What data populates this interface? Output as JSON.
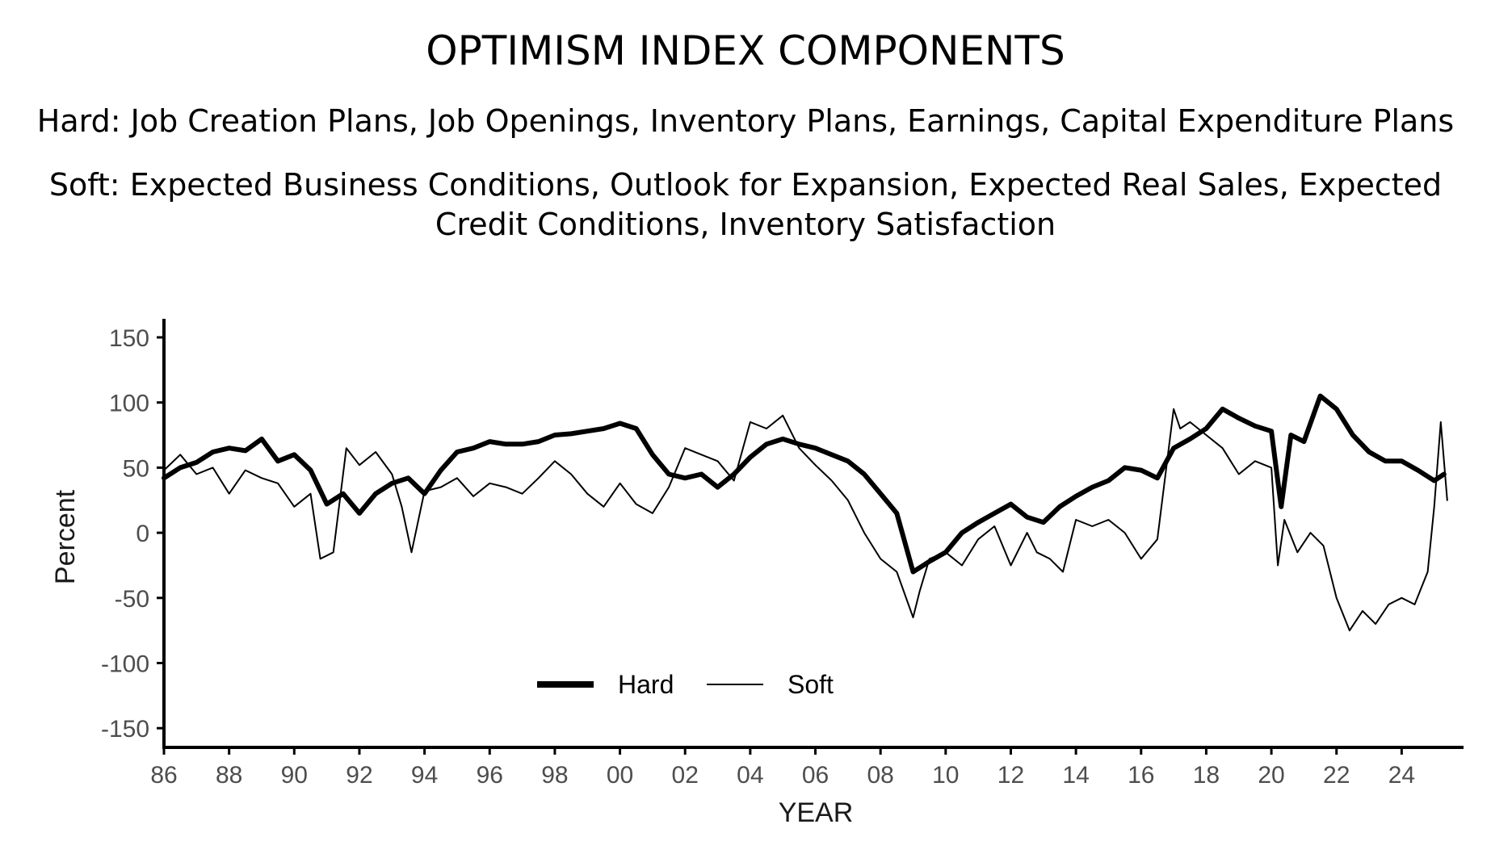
{
  "header": {
    "title": "OPTIMISM INDEX COMPONENTS",
    "hard_desc": "Hard: Job Creation Plans, Job Openings, Inventory Plans, Earnings, Capital Expenditure Plans",
    "soft_desc": "Soft: Expected Business Conditions, Outlook for Expansion, Expected Real Sales, Expected Credit Conditions, Inventory Satisfaction"
  },
  "chart_data": {
    "type": "line",
    "xlabel": "YEAR",
    "ylabel": "Percent",
    "xlim": [
      1986,
      2025.9
    ],
    "ylim": [
      -150,
      150
    ],
    "x_ticks": [
      1986,
      1988,
      1990,
      1992,
      1994,
      1996,
      1998,
      2000,
      2002,
      2004,
      2006,
      2008,
      2010,
      2012,
      2014,
      2016,
      2018,
      2020,
      2022,
      2024
    ],
    "x_tick_labels": [
      "86",
      "88",
      "90",
      "92",
      "94",
      "96",
      "98",
      "00",
      "02",
      "04",
      "06",
      "08",
      "10",
      "12",
      "14",
      "16",
      "18",
      "20",
      "22",
      "24"
    ],
    "y_ticks": [
      150,
      100,
      50,
      0,
      -50,
      -100,
      -150
    ],
    "y_tick_labels": [
      "150",
      "100",
      "50",
      "0",
      "-50",
      "-100",
      "-150"
    ],
    "grid": false,
    "legend_position": "bottom-center",
    "series": [
      {
        "name": "Hard",
        "color": "#000000",
        "x": [
          1986.0,
          1986.5,
          1987.0,
          1987.5,
          1988.0,
          1988.5,
          1989.0,
          1989.5,
          1990.0,
          1990.5,
          1991.0,
          1991.5,
          1992.0,
          1992.5,
          1993.0,
          1993.5,
          1994.0,
          1994.5,
          1995.0,
          1995.5,
          1996.0,
          1996.5,
          1997.0,
          1997.5,
          1998.0,
          1998.5,
          1999.0,
          1999.5,
          2000.0,
          2000.5,
          2001.0,
          2001.5,
          2002.0,
          2002.5,
          2003.0,
          2003.5,
          2004.0,
          2004.5,
          2005.0,
          2005.5,
          2006.0,
          2006.5,
          2007.0,
          2007.5,
          2008.0,
          2008.5,
          2009.0,
          2009.5,
          2010.0,
          2010.5,
          2011.0,
          2011.5,
          2012.0,
          2012.5,
          2013.0,
          2013.5,
          2014.0,
          2014.5,
          2015.0,
          2015.5,
          2016.0,
          2016.5,
          2017.0,
          2017.5,
          2018.0,
          2018.5,
          2019.0,
          2019.5,
          2020.0,
          2020.3,
          2020.6,
          2021.0,
          2021.5,
          2022.0,
          2022.5,
          2023.0,
          2023.5,
          2024.0,
          2024.5,
          2025.0,
          2025.3
        ],
        "values": [
          42,
          50,
          54,
          62,
          65,
          63,
          72,
          55,
          60,
          48,
          22,
          30,
          15,
          30,
          38,
          42,
          30,
          48,
          62,
          65,
          70,
          68,
          68,
          70,
          75,
          76,
          78,
          80,
          84,
          80,
          60,
          45,
          42,
          45,
          35,
          45,
          58,
          68,
          72,
          68,
          65,
          60,
          55,
          45,
          30,
          15,
          -30,
          -22,
          -15,
          0,
          8,
          15,
          22,
          12,
          8,
          20,
          28,
          35,
          40,
          50,
          48,
          42,
          65,
          72,
          80,
          95,
          88,
          82,
          78,
          20,
          75,
          70,
          105,
          95,
          75,
          62,
          55,
          55,
          48,
          40,
          45
        ]
      },
      {
        "name": "Soft",
        "color": "#000000",
        "x": [
          1986.0,
          1986.5,
          1987.0,
          1987.5,
          1988.0,
          1988.5,
          1989.0,
          1989.5,
          1990.0,
          1990.5,
          1990.8,
          1991.2,
          1991.6,
          1992.0,
          1992.5,
          1993.0,
          1993.3,
          1993.6,
          1994.0,
          1994.5,
          1995.0,
          1995.5,
          1996.0,
          1996.5,
          1997.0,
          1997.5,
          1998.0,
          1998.5,
          1999.0,
          1999.5,
          2000.0,
          2000.5,
          2001.0,
          2001.5,
          2002.0,
          2002.5,
          2003.0,
          2003.5,
          2004.0,
          2004.5,
          2005.0,
          2005.5,
          2006.0,
          2006.5,
          2007.0,
          2007.5,
          2008.0,
          2008.5,
          2009.0,
          2009.2,
          2009.5,
          2010.0,
          2010.5,
          2011.0,
          2011.5,
          2012.0,
          2012.5,
          2012.8,
          2013.2,
          2013.6,
          2014.0,
          2014.5,
          2015.0,
          2015.5,
          2016.0,
          2016.5,
          2017.0,
          2017.2,
          2017.5,
          2018.0,
          2018.5,
          2019.0,
          2019.5,
          2020.0,
          2020.2,
          2020.4,
          2020.8,
          2021.2,
          2021.6,
          2022.0,
          2022.4,
          2022.8,
          2023.2,
          2023.6,
          2024.0,
          2024.4,
          2024.8,
          2025.0,
          2025.2,
          2025.4
        ],
        "values": [
          48,
          60,
          45,
          50,
          30,
          48,
          42,
          38,
          20,
          30,
          -20,
          -15,
          65,
          52,
          62,
          45,
          20,
          -15,
          32,
          35,
          42,
          28,
          38,
          35,
          30,
          42,
          55,
          45,
          30,
          20,
          38,
          22,
          15,
          35,
          65,
          60,
          55,
          40,
          85,
          80,
          90,
          65,
          52,
          40,
          25,
          0,
          -20,
          -30,
          -65,
          -45,
          -20,
          -15,
          -25,
          -5,
          5,
          -25,
          0,
          -15,
          -20,
          -30,
          10,
          5,
          10,
          0,
          -20,
          -5,
          95,
          80,
          85,
          75,
          65,
          45,
          55,
          50,
          -25,
          10,
          -15,
          0,
          -10,
          -50,
          -75,
          -60,
          -70,
          -55,
          -50,
          -55,
          -30,
          20,
          85,
          25
        ]
      }
    ]
  }
}
